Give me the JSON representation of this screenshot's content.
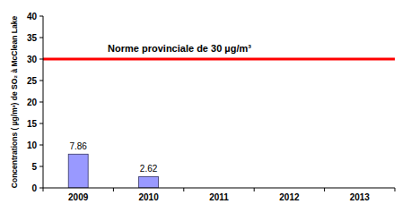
{
  "chart_data": {
    "type": "bar",
    "y_label": "Concentrations ( µg/m³) de SO₂ à McClean Lake",
    "categories": [
      "2009",
      "2010",
      "2011",
      "2012",
      "2013"
    ],
    "values": [
      7.86,
      2.62,
      null,
      null,
      null
    ],
    "color": "#9999ff",
    "ylim": [
      0,
      40
    ],
    "yticks": [
      0,
      5,
      10,
      15,
      20,
      25,
      30,
      35,
      40
    ],
    "grid": false,
    "data_labels": true,
    "annotations": [
      {
        "text": "Norme provinciale de 30 µg/m³",
        "y": 30,
        "color": "#ff0000"
      }
    ]
  }
}
